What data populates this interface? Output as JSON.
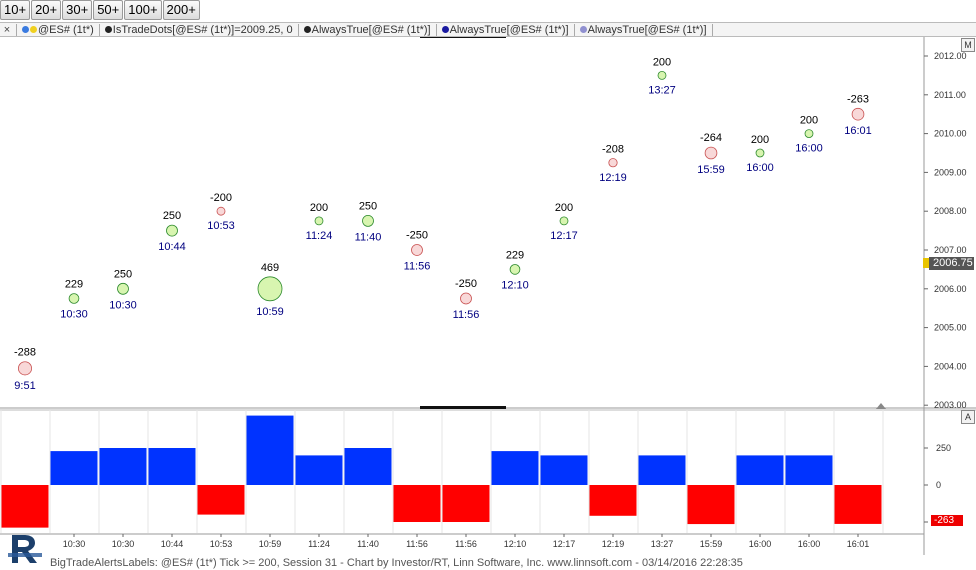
{
  "toolbar": {
    "buttons": [
      "10+",
      "20+",
      "30+",
      "50+",
      "100+",
      "200+"
    ]
  },
  "legend": {
    "close": "×",
    "items": [
      {
        "text": "@ES# (1t*)",
        "colors": [
          "#3a7be0",
          "#f0d020"
        ]
      },
      {
        "text": "IsTradeDots[@ES# (1t*)]=2009.25, 0",
        "colors": [
          "#222222"
        ]
      },
      {
        "text": "AlwaysTrue[@ES# (1t*)]",
        "colors": [
          "#222222"
        ]
      },
      {
        "text": "AlwaysTrue[@ES# (1t*)]",
        "colors": [
          "#1a1aa0"
        ]
      },
      {
        "text": "AlwaysTrue[@ES# (1t*)]",
        "colors": [
          "#9090d0"
        ]
      }
    ]
  },
  "corner": {
    "main": "M",
    "sub": "A"
  },
  "price_tag": "2006.75",
  "neg_tag": "-263",
  "status_text": "BigTradeAlertsLabels: @ES# (1t*) Tick >= 200, Session 31 - Chart by Investor/RT, Linn Software, Inc. www.linnsoft.com - 03/14/2016 22:28:35",
  "logo_alt": "Investor/RT logo",
  "chart_data": {
    "type": "scatter",
    "y_axis_ticks": [
      "2012.00",
      "2011.00",
      "2010.00",
      "2009.00",
      "2008.00",
      "2007.00",
      "2006.00",
      "2005.00",
      "2004.00",
      "2003.00"
    ],
    "ylim": [
      2003.0,
      2012.0
    ],
    "lower_ticks": [
      "250",
      "0",
      "-250"
    ],
    "lower_ylim": [
      -300,
      300
    ],
    "x_ticks": [
      "10:30",
      "10:30",
      "10:44",
      "10:53",
      "10:59",
      "11:24",
      "11:40",
      "11:56",
      "11:56",
      "12:10",
      "12:17",
      "12:19",
      "13:27",
      "15:59",
      "16:00",
      "16:00",
      "16:01"
    ],
    "points": [
      {
        "size": "-288",
        "time": "9:51",
        "price": 2003.95,
        "color": "red"
      },
      {
        "size": "229",
        "time": "10:30",
        "price": 2005.75,
        "color": "green"
      },
      {
        "size": "250",
        "time": "10:30",
        "price": 2006.0,
        "color": "green"
      },
      {
        "size": "250",
        "time": "10:44",
        "price": 2007.5,
        "color": "green"
      },
      {
        "size": "-200",
        "time": "10:53",
        "price": 2008.0,
        "color": "red"
      },
      {
        "size": "469",
        "time": "10:59",
        "price": 2006.0,
        "color": "green"
      },
      {
        "size": "200",
        "time": "11:24",
        "price": 2007.75,
        "color": "green"
      },
      {
        "size": "250",
        "time": "11:40",
        "price": 2007.75,
        "color": "green"
      },
      {
        "size": "-250",
        "time": "11:56",
        "price": 2007.0,
        "color": "red"
      },
      {
        "size": "-250",
        "time": "11:56",
        "price": 2005.75,
        "color": "red"
      },
      {
        "size": "229",
        "time": "12:10",
        "price": 2006.5,
        "color": "green"
      },
      {
        "size": "200",
        "time": "12:17",
        "price": 2007.75,
        "color": "green"
      },
      {
        "size": "-208",
        "time": "12:19",
        "price": 2009.25,
        "color": "red"
      },
      {
        "size": "200",
        "time": "13:27",
        "price": 2011.5,
        "color": "green"
      },
      {
        "size": "-264",
        "time": "15:59",
        "price": 2009.5,
        "color": "red"
      },
      {
        "size": "200",
        "time": "16:00",
        "price": 2009.5,
        "color": "green"
      },
      {
        "size": "200",
        "time": "16:00",
        "price": 2010.0,
        "color": "green"
      },
      {
        "size": "-263",
        "time": "16:01",
        "price": 2010.5,
        "color": "red"
      }
    ],
    "bars": [
      -288,
      229,
      250,
      250,
      -200,
      469,
      200,
      250,
      -250,
      -250,
      229,
      200,
      -208,
      200,
      -264,
      200,
      200,
      -263
    ],
    "colors": {
      "buy_dot": "#d8f5b0",
      "buy_dot_stroke": "#2e8b2e",
      "sell_dot": "#f8d8d8",
      "sell_dot_stroke": "#c85050",
      "buy_bar": "#0033ff",
      "sell_bar": "#ff0000",
      "time_label": "#000080"
    }
  }
}
